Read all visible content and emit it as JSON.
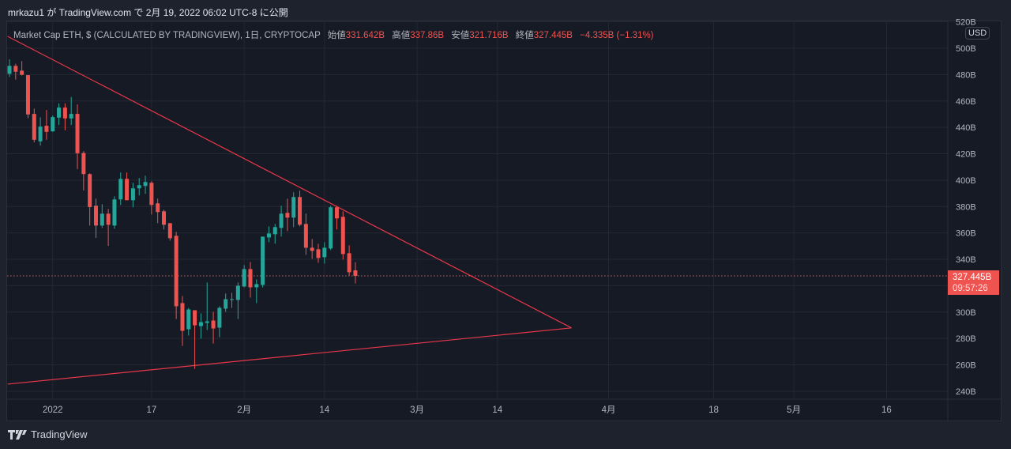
{
  "header": {
    "publish_text": "mrkazu1 が TradingView.com で 2月 19, 2022 06:02 UTC-8 に公開"
  },
  "legend": {
    "symbol": "Market Cap ETH, $ (CALCULATED BY TRADINGVIEW), 1日, CRYPTOCAP",
    "open_label": "始値",
    "open": "331.642B",
    "high_label": "高値",
    "high": "337.86B",
    "low_label": "安値",
    "low": "321.716B",
    "close_label": "終値",
    "close": "327.445B",
    "change": "−4.335B (−1.31%)"
  },
  "currency_button": "USD",
  "last_price": {
    "value": "327.445B",
    "countdown": "09:57:26"
  },
  "footer": {
    "logo_text": "TradingView"
  },
  "colors": {
    "up": "#26a69a",
    "down": "#ef5350",
    "trendline": "#e8374a",
    "grid": "#242833"
  },
  "chart_data": {
    "type": "candlestick",
    "title": "Market Cap ETH, $ (CALCULATED BY TRADINGVIEW), 1日, CRYPTOCAP",
    "x_unit": "days since 2022-01-01",
    "first_day": -7,
    "y_unit": "billion USD",
    "ylim": [
      236,
      522
    ],
    "y_ticks": [
      240,
      260,
      280,
      300,
      320,
      340,
      360,
      380,
      400,
      420,
      440,
      460,
      480,
      500,
      520
    ],
    "y_tick_labels": [
      "240B",
      "260B",
      "280B",
      "300B",
      "",
      "340B",
      "360B",
      "380B",
      "400B",
      "420B",
      "440B",
      "460B",
      "480B",
      "500B",
      "520B"
    ],
    "x_ticks": [
      {
        "day": 0,
        "label": "2022"
      },
      {
        "day": 16,
        "label": "17"
      },
      {
        "day": 31,
        "label": "2月"
      },
      {
        "day": 44,
        "label": "14"
      },
      {
        "day": 59,
        "label": "3月"
      },
      {
        "day": 72,
        "label": "14"
      },
      {
        "day": 90,
        "label": "4月"
      },
      {
        "day": 107,
        "label": "18"
      },
      {
        "day": 120,
        "label": "5月"
      },
      {
        "day": 135,
        "label": "16"
      }
    ],
    "ohlc": [
      [
        480.6,
        491.6,
        478.2,
        486.6
      ],
      [
        486.6,
        488.2,
        476.2,
        482.2
      ],
      [
        483,
        490.2,
        479.4,
        479.8
      ],
      [
        479.6,
        479.6,
        447,
        449.8
      ],
      [
        450.2,
        454.2,
        428.6,
        430.6
      ],
      [
        429.4,
        447.6,
        426.2,
        440.6
      ],
      [
        441.2,
        453.2,
        430.6,
        436.6
      ],
      [
        437,
        449,
        436.6,
        447.8
      ],
      [
        447.4,
        458.2,
        441.8,
        455
      ],
      [
        455,
        458.2,
        437.8,
        446.8
      ],
      [
        446.8,
        463,
        441.8,
        450.2
      ],
      [
        450.2,
        457.4,
        408.4,
        420.4
      ],
      [
        420.6,
        422,
        392.2,
        404.6
      ],
      [
        404.6,
        405.2,
        365.6,
        379.6
      ],
      [
        380.6,
        386,
        356.2,
        365.6
      ],
      [
        365.6,
        381.8,
        363.8,
        374.6
      ],
      [
        374.6,
        378.2,
        350.2,
        366.2
      ],
      [
        365.6,
        387.8,
        363.2,
        385.4
      ],
      [
        385.4,
        405.8,
        381.2,
        401
      ],
      [
        401,
        405.8,
        384.8,
        384.8
      ],
      [
        384.8,
        398,
        379.4,
        393.8
      ],
      [
        393.8,
        401.6,
        388.4,
        396.2
      ],
      [
        395.6,
        403.4,
        389.6,
        398.6
      ],
      [
        398,
        399.2,
        374,
        381.2
      ],
      [
        382.4,
        386,
        367.4,
        375.8
      ],
      [
        376.4,
        377.6,
        362.6,
        366.2
      ],
      [
        367.4,
        367.4,
        354.2,
        356
      ],
      [
        357.8,
        360.8,
        294.8,
        304.4
      ],
      [
        306.8,
        312.2,
        274.4,
        285.8
      ],
      [
        287,
        303.2,
        282.2,
        302
      ],
      [
        301.4,
        301.4,
        257,
        290
      ],
      [
        289.4,
        299,
        279.8,
        292.4
      ],
      [
        291.8,
        322.4,
        286.4,
        293
      ],
      [
        293.6,
        300.2,
        276.2,
        287.6
      ],
      [
        288.2,
        304.4,
        281,
        303.2
      ],
      [
        302.6,
        314,
        300.2,
        309.8
      ],
      [
        309.2,
        314.6,
        303.2,
        309.8
      ],
      [
        309.2,
        322.4,
        294.8,
        320
      ],
      [
        319.4,
        335.6,
        318.8,
        332.6
      ],
      [
        332.6,
        338,
        311,
        318.8
      ],
      [
        318.8,
        324.8,
        306.8,
        321.2
      ],
      [
        320.6,
        357.2,
        318.8,
        357.2
      ],
      [
        356.6,
        365,
        353,
        359.6
      ],
      [
        359,
        366.8,
        351.8,
        364.4
      ],
      [
        363.8,
        380.6,
        357.2,
        374.6
      ],
      [
        375.2,
        386,
        361.4,
        371.6
      ],
      [
        371.6,
        390.8,
        364.4,
        387.2
      ],
      [
        387.2,
        392,
        365,
        366.2
      ],
      [
        366.8,
        374.6,
        343.4,
        348.8
      ],
      [
        348.8,
        355.4,
        340.4,
        346.4
      ],
      [
        347.6,
        351.8,
        337.4,
        341
      ],
      [
        341.6,
        353,
        336.8,
        348.8
      ],
      [
        348.2,
        380.6,
        347,
        379.4
      ],
      [
        379.4,
        380.6,
        362.6,
        371
      ],
      [
        372.2,
        376.4,
        339.8,
        344
      ],
      [
        344.6,
        350.6,
        327.8,
        330.2
      ],
      [
        331.642,
        337.86,
        321.716,
        327.445
      ]
    ],
    "trendlines": [
      {
        "name": "upper",
        "from": {
          "day": -7.3,
          "value": 509
        },
        "to": {
          "day": 84,
          "value": 288
        }
      },
      {
        "name": "lower",
        "from": {
          "day": -7.3,
          "value": 245.4
        },
        "to": {
          "day": 84,
          "value": 288
        }
      }
    ],
    "last_price_line": 327.445
  }
}
